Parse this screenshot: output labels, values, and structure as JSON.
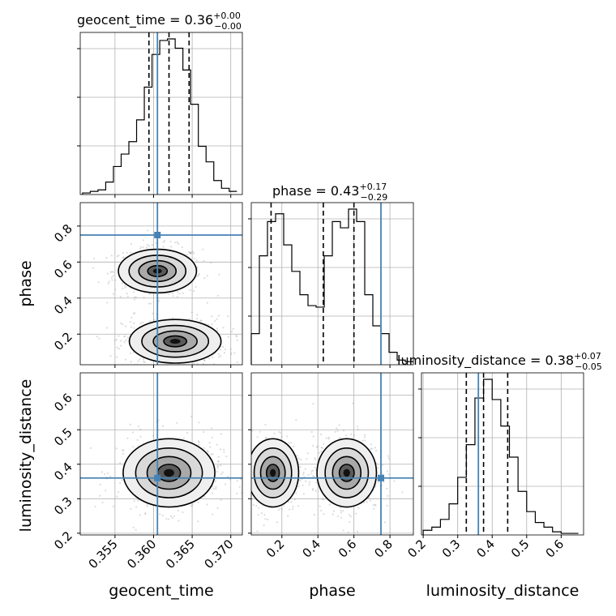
{
  "chart_data": {
    "type": "corner",
    "parameters": [
      "geocent_time",
      "phase",
      "luminosity_distance"
    ],
    "truths": {
      "geocent_time": 0.3605,
      "phase": 0.75,
      "luminosity_distance": 0.36
    },
    "titles": [
      {
        "param": "geocent_time",
        "text": "geocent_time = 0.36",
        "plus": "+0.00",
        "minus": "−0.00"
      },
      {
        "param": "phase",
        "text": "phase = 0.43",
        "plus": "+0.17",
        "minus": "−0.29"
      },
      {
        "param": "luminosity_distance",
        "text": "luminosity_distance = 0.38",
        "plus": "+0.07",
        "minus": "−0.05"
      }
    ],
    "axes": {
      "geocent_time": {
        "range": [
          0.3505,
          0.3715
        ],
        "ticks": [
          "0.355",
          "0.360",
          "0.365",
          "0.370"
        ],
        "tick_values": [
          0.355,
          0.36,
          0.365,
          0.37
        ]
      },
      "phase": {
        "range": [
          0.03,
          0.93
        ],
        "ticks": [
          "0.2",
          "0.4",
          "0.6",
          "0.8"
        ],
        "tick_values": [
          0.2,
          0.4,
          0.6,
          0.8
        ]
      },
      "luminosity_distance": {
        "range": [
          0.195,
          0.665
        ],
        "ticks": [
          "0.2",
          "0.3",
          "0.4",
          "0.5",
          "0.6"
        ],
        "tick_values": [
          0.2,
          0.3,
          0.4,
          0.5,
          0.6
        ]
      }
    },
    "histograms": {
      "geocent_time": {
        "bins": [
          0.3508,
          0.3518,
          0.3528,
          0.3538,
          0.3548,
          0.3558,
          0.3568,
          0.3578,
          0.3588,
          0.3598,
          0.3608,
          0.3618,
          0.3628,
          0.3638,
          0.3648,
          0.3658,
          0.3668,
          0.3678,
          0.3688,
          0.3698,
          0.3708
        ],
        "counts": [
          0.01,
          0.02,
          0.03,
          0.08,
          0.18,
          0.26,
          0.34,
          0.48,
          0.69,
          0.9,
          0.99,
          1.0,
          0.94,
          0.8,
          0.58,
          0.31,
          0.21,
          0.09,
          0.04,
          0.02
        ],
        "quantiles": [
          0.3594,
          0.362,
          0.3646
        ]
      },
      "phase": {
        "bins": [
          0.03,
          0.075,
          0.12,
          0.165,
          0.21,
          0.255,
          0.3,
          0.345,
          0.39,
          0.435,
          0.48,
          0.525,
          0.57,
          0.615,
          0.66,
          0.705,
          0.75,
          0.795,
          0.84,
          0.885,
          0.93
        ],
        "counts": [
          0.2,
          0.7,
          0.92,
          0.97,
          0.77,
          0.6,
          0.45,
          0.38,
          0.37,
          0.7,
          0.92,
          0.88,
          1.0,
          0.92,
          0.45,
          0.25,
          0.2,
          0.08,
          0.03,
          0.02
        ],
        "quantiles": [
          0.14,
          0.43,
          0.6
        ]
      },
      "luminosity_distance": {
        "bins": [
          0.2,
          0.225,
          0.25,
          0.275,
          0.3,
          0.325,
          0.35,
          0.375,
          0.4,
          0.425,
          0.45,
          0.475,
          0.5,
          0.525,
          0.55,
          0.575,
          0.6,
          0.625,
          0.65
        ],
        "counts": [
          0.03,
          0.05,
          0.1,
          0.2,
          0.37,
          0.58,
          0.88,
          1.0,
          0.87,
          0.7,
          0.5,
          0.28,
          0.15,
          0.08,
          0.05,
          0.02,
          0.01,
          0.01
        ],
        "quantiles": [
          0.325,
          0.375,
          0.445
        ]
      }
    },
    "joint": {
      "geocent_time_vs_phase": {
        "modes": [
          {
            "x": 0.3605,
            "y": 0.55,
            "sx": 0.0023,
            "sy": 0.055
          },
          {
            "x": 0.3628,
            "y": 0.16,
            "sx": 0.0027,
            "sy": 0.055
          }
        ]
      },
      "geocent_time_vs_luminosity_distance": {
        "modes": [
          {
            "x": 0.362,
            "y": 0.375,
            "sx": 0.0027,
            "sy": 0.045
          }
        ]
      },
      "phase_vs_luminosity_distance": {
        "modes": [
          {
            "x": 0.15,
            "y": 0.375,
            "sx": 0.065,
            "sy": 0.045
          },
          {
            "x": 0.56,
            "y": 0.375,
            "sx": 0.075,
            "sy": 0.045
          }
        ]
      }
    },
    "grid": true
  }
}
